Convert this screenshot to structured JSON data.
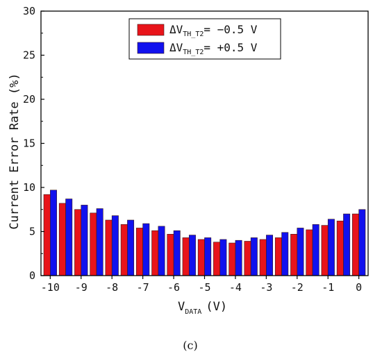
{
  "chart_data": {
    "type": "bar",
    "x": [
      -10,
      -9.5,
      -9,
      -8.5,
      -8,
      -7.5,
      -7,
      -6.5,
      -6,
      -5.5,
      -5,
      -4.5,
      -4,
      -3.5,
      -3,
      -2.5,
      -2,
      -1.5,
      -1,
      -0.5,
      0
    ],
    "series": [
      {
        "name_prefix": "ΔV",
        "name_sub": "TH_T2",
        "name_suffix": "= −0.5 V",
        "color": "#e8141a",
        "values": [
          9.2,
          8.2,
          7.5,
          7.1,
          6.3,
          5.8,
          5.4,
          5.1,
          4.7,
          4.3,
          4.1,
          3.8,
          3.7,
          3.9,
          4.1,
          4.3,
          4.7,
          5.2,
          5.7,
          6.2,
          7.0
        ]
      },
      {
        "name_prefix": "ΔV",
        "name_sub": "TH_T2",
        "name_suffix": "= +0.5 V",
        "color": "#1111ee",
        "values": [
          9.7,
          8.7,
          8.0,
          7.6,
          6.8,
          6.3,
          5.9,
          5.6,
          5.1,
          4.6,
          4.3,
          4.1,
          4.0,
          4.3,
          4.6,
          4.9,
          5.4,
          5.8,
          6.4,
          7.0,
          7.5
        ]
      }
    ],
    "ylim": [
      0,
      30
    ],
    "xlim": [
      -10.3,
      0.3
    ],
    "yticks": [
      "0",
      "5",
      "10",
      "15",
      "20",
      "25",
      "30"
    ],
    "xticks": [
      "-10",
      "-9",
      "-8",
      "-7",
      "-6",
      "-5",
      "-4",
      "-3",
      "-2",
      "-1",
      "0"
    ],
    "ylabel": "Current Error Rate (%)",
    "xlabel_main": "V",
    "xlabel_sub": "DATA",
    "xlabel_unit": "(V)",
    "legend": "top-center",
    "grid": false
  },
  "caption": "(c)"
}
